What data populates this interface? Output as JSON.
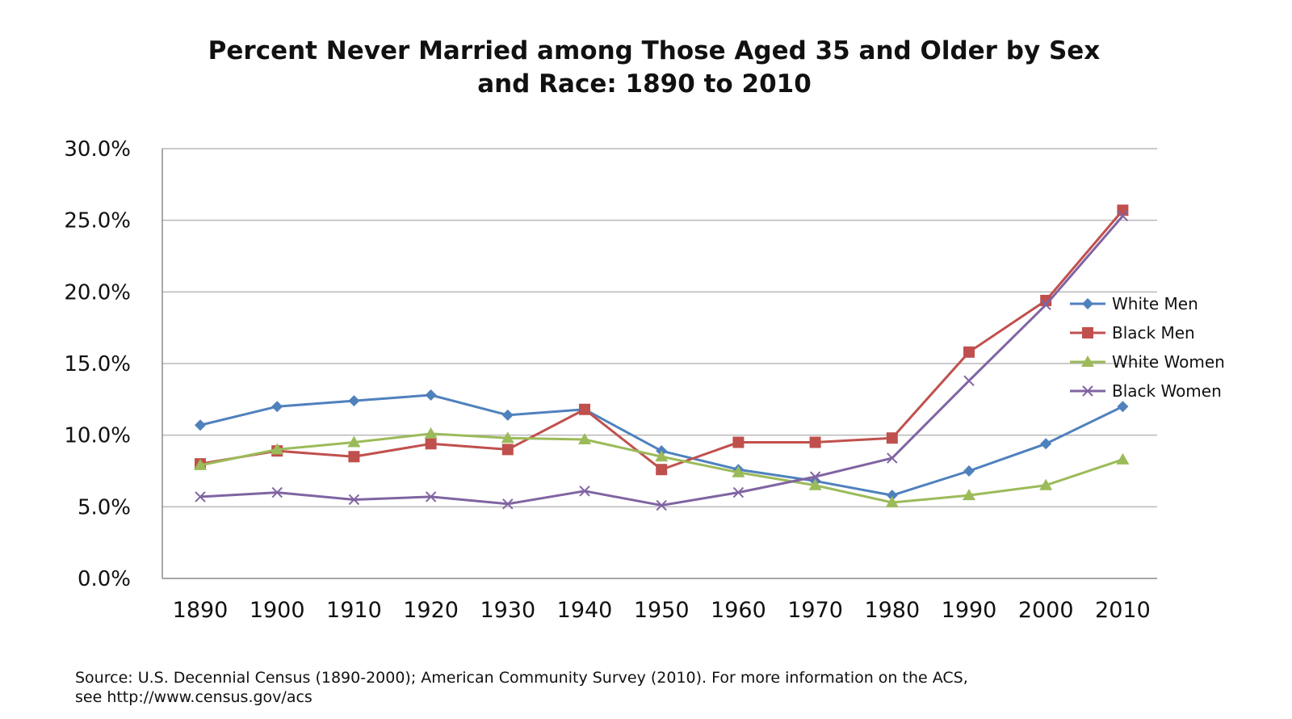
{
  "chart_data": {
    "type": "line",
    "title_lines": [
      "Percent Never Married among Those Aged 35 and Older by Sex",
      "and Race:  1890 to 2010"
    ],
    "categories": [
      "1890",
      "1900",
      "1910",
      "1920",
      "1930",
      "1940",
      "1950",
      "1960",
      "1970",
      "1980",
      "1990",
      "2000",
      "2010"
    ],
    "ylim": [
      0,
      30
    ],
    "yticks": [
      {
        "value": 0,
        "label": "0.0%"
      },
      {
        "value": 5,
        "label": "5.0%"
      },
      {
        "value": 10,
        "label": "10.0%"
      },
      {
        "value": 15,
        "label": "15.0%"
      },
      {
        "value": 20,
        "label": "20.0%"
      },
      {
        "value": 25,
        "label": "25.0%"
      },
      {
        "value": 30,
        "label": "30.0%"
      }
    ],
    "grid": true,
    "legend_position": "right",
    "series": [
      {
        "name": "White Men",
        "color": "#4F81BD",
        "marker": "diamond",
        "values": [
          10.7,
          12.0,
          12.4,
          12.8,
          11.4,
          11.8,
          8.9,
          7.6,
          6.8,
          5.8,
          7.5,
          9.4,
          12.0
        ]
      },
      {
        "name": "Black Men",
        "color": "#C0504D",
        "marker": "square",
        "values": [
          8.0,
          8.9,
          8.5,
          9.4,
          9.0,
          11.8,
          7.6,
          9.5,
          9.5,
          9.8,
          15.8,
          19.4,
          25.7
        ]
      },
      {
        "name": "White Women",
        "color": "#9BBB59",
        "marker": "triangle",
        "values": [
          7.9,
          9.0,
          9.5,
          10.1,
          9.8,
          9.7,
          8.5,
          7.4,
          6.5,
          5.3,
          5.8,
          6.5,
          8.3
        ]
      },
      {
        "name": "Black Women",
        "color": "#8064A2",
        "marker": "x",
        "values": [
          5.7,
          6.0,
          5.5,
          5.7,
          5.2,
          6.1,
          5.1,
          6.0,
          7.1,
          8.4,
          13.8,
          19.1,
          25.3
        ]
      }
    ],
    "source_lines": [
      "Source:  U.S. Decennial Census (1890-2000); American Community Survey (2010). For more information on the ACS,",
      "see http://www.census.gov/acs"
    ]
  }
}
